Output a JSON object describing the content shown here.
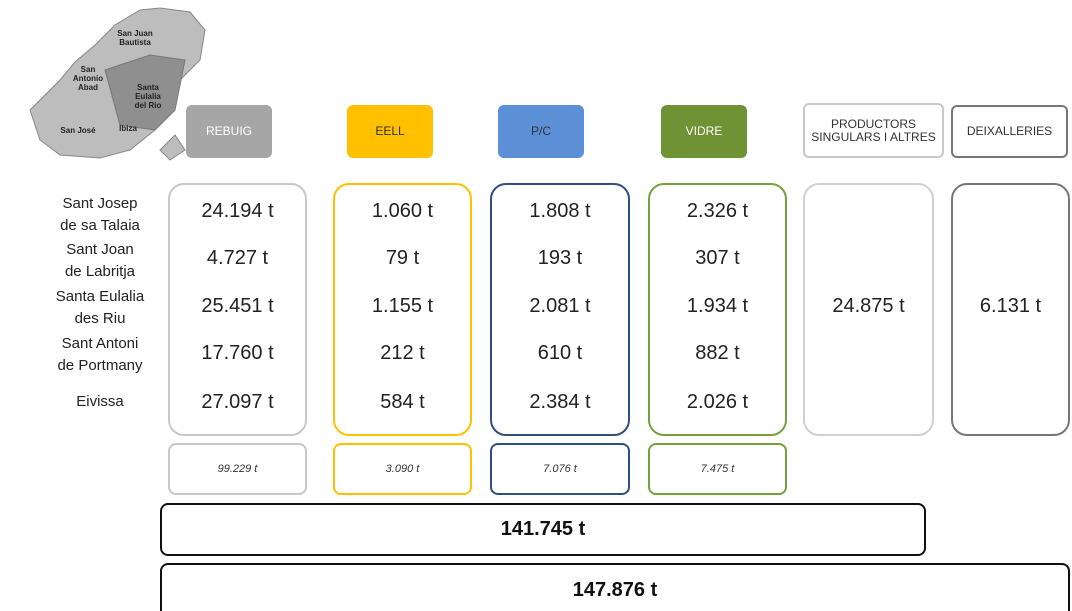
{
  "map": {
    "labels": [
      [
        "San Juan",
        "Bautista"
      ],
      [
        "San",
        "Antonio",
        "Abad"
      ],
      [
        "Santa",
        "Eulalia",
        "del Rio"
      ],
      [
        "San José"
      ],
      [
        "Ibiza"
      ]
    ]
  },
  "municipalities": [
    [
      "Sant Josep",
      "de sa Talaia"
    ],
    [
      "Sant Joan",
      "de Labritja"
    ],
    [
      "Santa Eulalia",
      "des Riu"
    ],
    [
      "Sant Antoni",
      "de Portmany"
    ],
    [
      "Eivissa"
    ]
  ],
  "columns": [
    {
      "header": "REBUIG",
      "values": [
        "24.194 t",
        "4.727 t",
        "25.451 t",
        "17.760 t",
        "27.097 t"
      ],
      "total": "99.229 t"
    },
    {
      "header": "EELL",
      "values": [
        "1.060 t",
        "79 t",
        "1.155 t",
        "212 t",
        "584 t"
      ],
      "total": "3.090 t"
    },
    {
      "header": "P/C",
      "values": [
        "1.808 t",
        "193 t",
        "2.081 t",
        "610 t",
        "2.384 t"
      ],
      "total": "7.076 t"
    },
    {
      "header": "VIDRE",
      "values": [
        "2.326 t",
        "307 t",
        "1.934 t",
        "882 t",
        "2.026 t"
      ],
      "total": "7.475 t"
    },
    {
      "header": "PRODUCTORS SINGULARS I ALTRES",
      "value": "24.875 t"
    },
    {
      "header": "DEIXALLERIES",
      "value": "6.131 t"
    }
  ],
  "subtotal": "141.745 t",
  "grand_total": "147.876 t"
}
